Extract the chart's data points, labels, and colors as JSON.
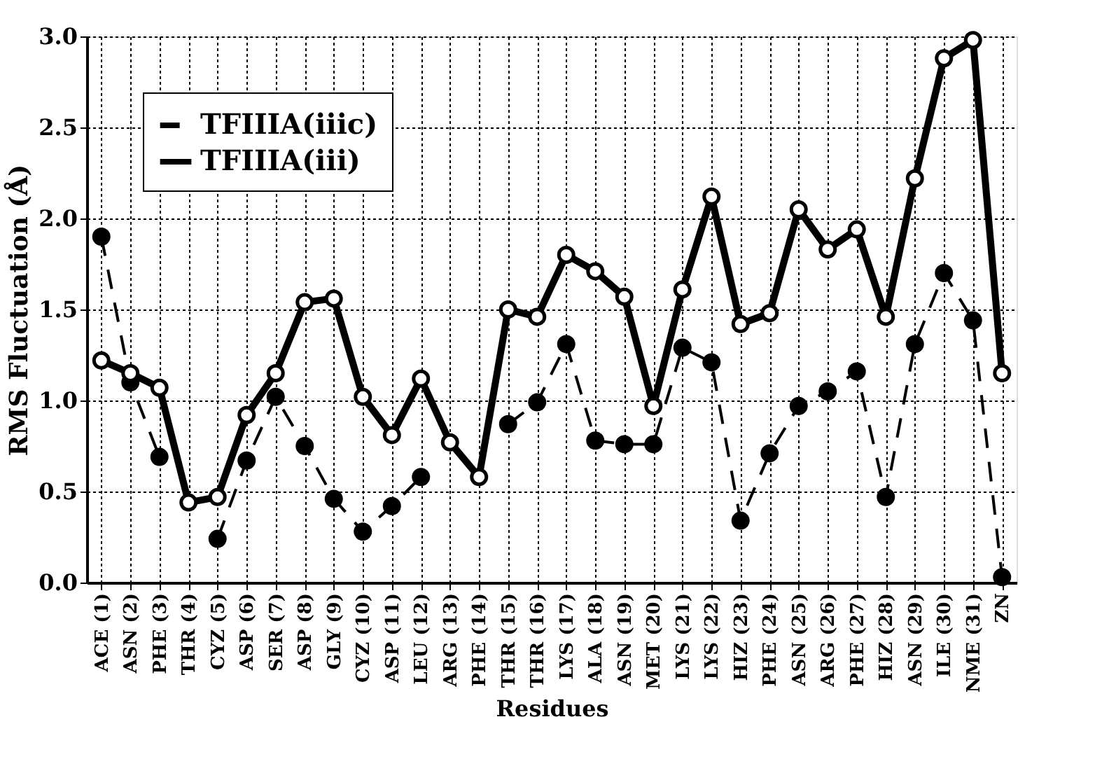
{
  "chart_data": {
    "type": "line",
    "categories": [
      "ACE (1)",
      "ASN (2)",
      "PHE (3)",
      "THR (4)",
      "CYZ (5)",
      "ASP (6)",
      "SER (7)",
      "ASP (8)",
      "GLY (9)",
      "CYZ (10)",
      "ASP (11)",
      "LEU (12)",
      "ARG (13)",
      "PHE (14)",
      "THR (15)",
      "THR (16)",
      "LYS (17)",
      "ALA (18)",
      "ASN (19)",
      "MET (20)",
      "LYS (21)",
      "LYS (22)",
      "HIZ (23)",
      "PHE (24)",
      "ASN (25)",
      "ARG (26)",
      "PHE (27)",
      "HIZ (28)",
      "ASN (29)",
      "ILE (30)",
      "NME (31)",
      "ZN"
    ],
    "series": [
      {
        "name": "TFIIIA(iiic)",
        "color": "#000000",
        "line_style": "dashed",
        "values": [
          1.9,
          1.1,
          0.69,
          null,
          0.24,
          0.67,
          1.02,
          0.75,
          0.46,
          0.28,
          0.42,
          0.58,
          null,
          null,
          0.87,
          0.99,
          1.31,
          0.78,
          0.76,
          0.76,
          1.29,
          1.21,
          0.34,
          0.71,
          0.97,
          1.05,
          1.16,
          0.47,
          1.31,
          1.7,
          1.44,
          0.03
        ]
      },
      {
        "name": "TFIIIA(iii)",
        "color": "#000000",
        "line_style": "solid",
        "values": [
          1.22,
          1.15,
          1.07,
          0.44,
          0.47,
          0.92,
          1.15,
          1.54,
          1.56,
          1.02,
          0.81,
          1.12,
          0.77,
          0.58,
          1.5,
          1.46,
          1.8,
          1.71,
          1.57,
          0.97,
          1.61,
          2.12,
          1.42,
          1.48,
          2.05,
          1.83,
          1.94,
          1.46,
          2.22,
          2.88,
          2.98,
          1.15
        ]
      }
    ],
    "xlabel": "Residues",
    "ylabel": "RMS Fluctuation (Å)",
    "ylim": [
      0,
      3.0
    ],
    "yticks": [
      {
        "value": 0,
        "label": "0.0"
      },
      {
        "value": 0.5,
        "label": "0.5"
      },
      {
        "value": 1,
        "label": "1.0"
      },
      {
        "value": 1.5,
        "label": "1.5"
      },
      {
        "value": 2,
        "label": "2.0"
      },
      {
        "value": 2.5,
        "label": "2.5"
      },
      {
        "value": 3,
        "label": "3.0"
      }
    ],
    "grid": true,
    "legend": "top left",
    "marker": "circle"
  }
}
